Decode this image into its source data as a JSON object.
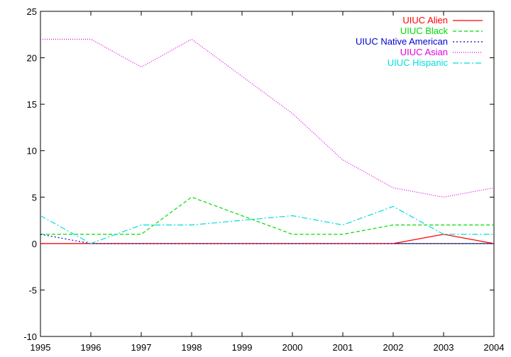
{
  "chart_data": {
    "type": "line",
    "title": "",
    "xlabel": "",
    "ylabel": "",
    "xlim": [
      1995,
      2004
    ],
    "ylim": [
      -10,
      25
    ],
    "x_ticks": [
      "1995",
      "1996",
      "1997",
      "1998",
      "1999",
      "2000",
      "2001",
      "2002",
      "2003",
      "2004"
    ],
    "y_ticks": [
      "25",
      "20",
      "15",
      "10",
      "5",
      "0",
      "-5",
      "-10"
    ],
    "grid": false,
    "legend_position": "top-right",
    "x": [
      1995,
      1996,
      1997,
      1998,
      1999,
      2000,
      2001,
      2002,
      2003,
      2004
    ],
    "series": [
      {
        "name": "UIUC Alien",
        "color": "#ff0000",
        "dash": "solid",
        "values": [
          0,
          0,
          0,
          0,
          0,
          0,
          0,
          0,
          1,
          0
        ]
      },
      {
        "name": "UIUC Black",
        "color": "#00dd00",
        "dash": "dashed",
        "values": [
          1,
          1,
          1,
          5,
          3,
          1,
          1,
          2,
          2,
          2
        ]
      },
      {
        "name": "UIUC Native American",
        "color": "#0000cc",
        "dash": "dotted",
        "values": [
          1,
          0,
          0,
          0,
          0,
          0,
          0,
          0,
          0,
          0
        ]
      },
      {
        "name": "UIUC Asian",
        "color": "#dd00dd",
        "dash": "fine-dotted",
        "values": [
          22,
          22,
          19,
          22,
          18,
          14,
          9,
          6,
          5,
          6
        ]
      },
      {
        "name": "UIUC Hispanic",
        "color": "#00dddd",
        "dash": "dash-dot",
        "values": [
          3,
          0,
          2,
          2,
          2.5,
          3,
          2,
          4,
          1,
          1
        ]
      }
    ]
  }
}
